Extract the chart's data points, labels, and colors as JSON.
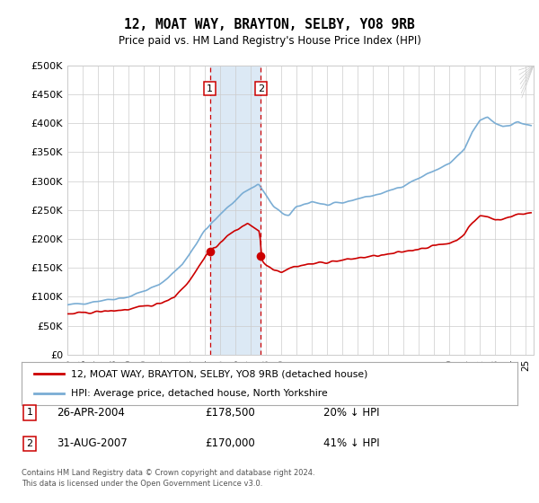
{
  "title": "12, MOAT WAY, BRAYTON, SELBY, YO8 9RB",
  "subtitle": "Price paid vs. HM Land Registry's House Price Index (HPI)",
  "ylabel_ticks": [
    "£0",
    "£50K",
    "£100K",
    "£150K",
    "£200K",
    "£250K",
    "£300K",
    "£350K",
    "£400K",
    "£450K",
    "£500K"
  ],
  "ytick_values": [
    0,
    50000,
    100000,
    150000,
    200000,
    250000,
    300000,
    350000,
    400000,
    450000,
    500000
  ],
  "xmin": 1995.0,
  "xmax": 2025.5,
  "ymin": 0,
  "ymax": 500000,
  "transaction1": {
    "date_num": 2004.32,
    "price": 178500,
    "label": "1"
  },
  "transaction2": {
    "date_num": 2007.66,
    "price": 170000,
    "label": "2"
  },
  "shade_color": "#dce9f5",
  "dashed_color": "#cc0000",
  "legend_line1": "12, MOAT WAY, BRAYTON, SELBY, YO8 9RB (detached house)",
  "legend_line2": "HPI: Average price, detached house, North Yorkshire",
  "footer1": "Contains HM Land Registry data © Crown copyright and database right 2024.",
  "footer2": "This data is licensed under the Open Government Licence v3.0.",
  "annot1_date": "26-APR-2004",
  "annot1_price": "£178,500",
  "annot1_hpi": "20% ↓ HPI",
  "annot2_date": "31-AUG-2007",
  "annot2_price": "£170,000",
  "annot2_hpi": "41% ↓ HPI",
  "background_color": "#ffffff",
  "grid_color": "#cccccc",
  "red_line_color": "#cc0000",
  "blue_line_color": "#7aadd4"
}
